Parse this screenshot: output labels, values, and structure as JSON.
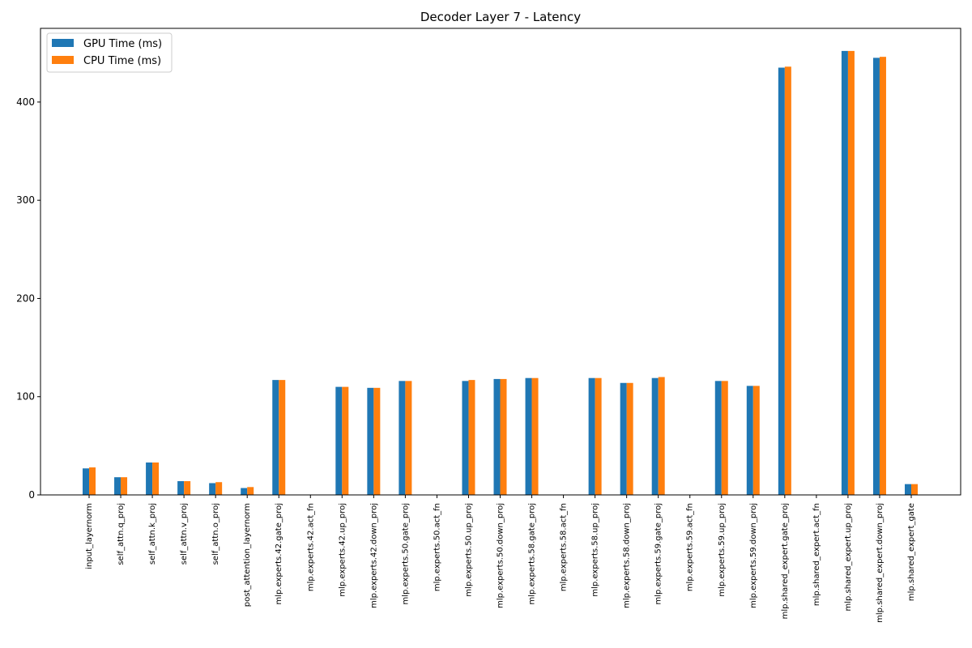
{
  "chart_data": {
    "type": "bar",
    "title": "Decoder Layer 7 - Latency",
    "xlabel": "",
    "ylabel": "",
    "ylim": [
      0,
      475
    ],
    "yticks": [
      0,
      100,
      200,
      300,
      400
    ],
    "legend": {
      "position": "top-left"
    },
    "categories": [
      "input_layernorm",
      "self_attn.q_proj",
      "self_attn.k_proj",
      "self_attn.v_proj",
      "self_attn.o_proj",
      "post_attention_layernorm",
      "mlp.experts.42.gate_proj",
      "mlp.experts.42.act_fn",
      "mlp.experts.42.up_proj",
      "mlp.experts.42.down_proj",
      "mlp.experts.50.gate_proj",
      "mlp.experts.50.act_fn",
      "mlp.experts.50.up_proj",
      "mlp.experts.50.down_proj",
      "mlp.experts.58.gate_proj",
      "mlp.experts.58.act_fn",
      "mlp.experts.58.up_proj",
      "mlp.experts.58.down_proj",
      "mlp.experts.59.gate_proj",
      "mlp.experts.59.act_fn",
      "mlp.experts.59.up_proj",
      "mlp.experts.59.down_proj",
      "mlp.shared_expert.gate_proj",
      "mlp.shared_expert.act_fn",
      "mlp.shared_expert.up_proj",
      "mlp.shared_expert.down_proj",
      "mlp.shared_expert_gate"
    ],
    "series": [
      {
        "name": "GPU Time (ms)",
        "color": "#1f77b4",
        "values": [
          27,
          18,
          33,
          14,
          12,
          7,
          117,
          0,
          110,
          109,
          116,
          0,
          116,
          118,
          119,
          0,
          119,
          114,
          119,
          0,
          116,
          111,
          435,
          0,
          452,
          445,
          11
        ]
      },
      {
        "name": "CPU Time (ms)",
        "color": "#ff7f0e",
        "values": [
          28,
          18,
          33,
          14,
          13,
          8,
          117,
          0,
          110,
          109,
          116,
          0,
          117,
          118,
          119,
          0,
          119,
          114,
          120,
          0,
          116,
          111,
          436,
          0,
          452,
          446,
          11
        ]
      }
    ]
  }
}
